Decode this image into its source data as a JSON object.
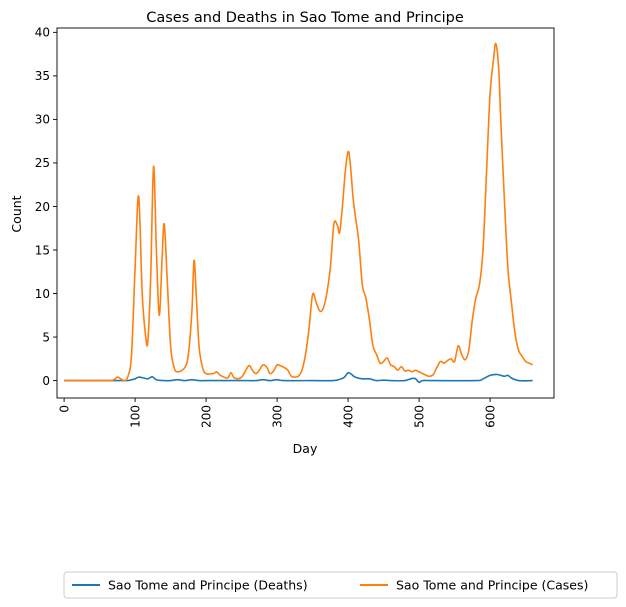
{
  "chart_data": {
    "type": "line",
    "title": "Cases and Deaths in Sao Tome and Principe",
    "xlabel": "Day",
    "ylabel": "Count",
    "xlim": [
      -10,
      690
    ],
    "ylim": [
      -2,
      40.5
    ],
    "xticks": [
      0,
      100,
      200,
      300,
      400,
      500,
      600
    ],
    "yticks": [
      0,
      5,
      10,
      15,
      20,
      25,
      30,
      35,
      40
    ],
    "x_tick_rotation": "vertical",
    "grid": false,
    "legend": "bottom, outside plot, 2 columns",
    "series": [
      {
        "name": "Sao Tome and Principe (Deaths)",
        "color": "#1f77b4",
        "points": [
          [
            0,
            0
          ],
          [
            80,
            0
          ],
          [
            90,
            0
          ],
          [
            95,
            0.1
          ],
          [
            100,
            0.2
          ],
          [
            105,
            0.4
          ],
          [
            112,
            0.3
          ],
          [
            118,
            0.2
          ],
          [
            124,
            0.45
          ],
          [
            130,
            0.1
          ],
          [
            140,
            0
          ],
          [
            150,
            0
          ],
          [
            160,
            0.1
          ],
          [
            170,
            0
          ],
          [
            180,
            0.1
          ],
          [
            190,
            0
          ],
          [
            200,
            0
          ],
          [
            250,
            0
          ],
          [
            270,
            0
          ],
          [
            280,
            0.1
          ],
          [
            290,
            0
          ],
          [
            300,
            0.1
          ],
          [
            310,
            0
          ],
          [
            350,
            0
          ],
          [
            380,
            0
          ],
          [
            390,
            0.2
          ],
          [
            395,
            0.4
          ],
          [
            400,
            0.9
          ],
          [
            405,
            0.7
          ],
          [
            410,
            0.4
          ],
          [
            420,
            0.2
          ],
          [
            430,
            0.2
          ],
          [
            440,
            0
          ],
          [
            450,
            0.05
          ],
          [
            460,
            0
          ],
          [
            480,
            0
          ],
          [
            490,
            0.25
          ],
          [
            495,
            0.2
          ],
          [
            500,
            -0.2
          ],
          [
            505,
            0
          ],
          [
            520,
            0
          ],
          [
            580,
            0
          ],
          [
            590,
            0.2
          ],
          [
            600,
            0.6
          ],
          [
            610,
            0.7
          ],
          [
            620,
            0.5
          ],
          [
            625,
            0.6
          ],
          [
            630,
            0.3
          ],
          [
            640,
            0
          ],
          [
            660,
            0
          ]
        ]
      },
      {
        "name": "Sao Tome and Principe (Cases)",
        "color": "#ff7f0e",
        "points": [
          [
            0,
            0
          ],
          [
            60,
            0
          ],
          [
            70,
            0.1
          ],
          [
            75,
            0.4
          ],
          [
            80,
            0.2
          ],
          [
            85,
            0
          ],
          [
            90,
            0.5
          ],
          [
            95,
            3
          ],
          [
            100,
            13
          ],
          [
            105,
            21.2
          ],
          [
            110,
            10
          ],
          [
            115,
            5
          ],
          [
            118,
            4.6
          ],
          [
            122,
            12
          ],
          [
            126,
            24.6
          ],
          [
            130,
            15
          ],
          [
            134,
            7.5
          ],
          [
            138,
            14
          ],
          [
            141,
            18
          ],
          [
            145,
            12
          ],
          [
            150,
            4
          ],
          [
            155,
            1.5
          ],
          [
            160,
            1
          ],
          [
            170,
            1.5
          ],
          [
            175,
            3
          ],
          [
            180,
            8
          ],
          [
            183,
            13.8
          ],
          [
            186,
            10
          ],
          [
            190,
            4
          ],
          [
            195,
            1.5
          ],
          [
            200,
            0.8
          ],
          [
            210,
            0.8
          ],
          [
            215,
            1
          ],
          [
            220,
            0.6
          ],
          [
            230,
            0.3
          ],
          [
            235,
            0.9
          ],
          [
            240,
            0.3
          ],
          [
            250,
            0.4
          ],
          [
            260,
            1.7
          ],
          [
            265,
            1.2
          ],
          [
            270,
            0.8
          ],
          [
            275,
            1.2
          ],
          [
            280,
            1.8
          ],
          [
            285,
            1.6
          ],
          [
            290,
            0.8
          ],
          [
            295,
            1.1
          ],
          [
            300,
            1.8
          ],
          [
            305,
            1.7
          ],
          [
            310,
            1.5
          ],
          [
            315,
            1.2
          ],
          [
            320,
            0.5
          ],
          [
            325,
            0.4
          ],
          [
            330,
            0.5
          ],
          [
            335,
            1.2
          ],
          [
            340,
            3
          ],
          [
            345,
            6
          ],
          [
            350,
            9.9
          ],
          [
            355,
            9
          ],
          [
            360,
            8
          ],
          [
            365,
            8.3
          ],
          [
            370,
            10
          ],
          [
            375,
            13
          ],
          [
            380,
            18
          ],
          [
            385,
            17.8
          ],
          [
            388,
            17
          ],
          [
            392,
            20
          ],
          [
            396,
            24
          ],
          [
            400,
            26.3
          ],
          [
            403,
            25
          ],
          [
            407,
            21
          ],
          [
            410,
            19
          ],
          [
            415,
            16
          ],
          [
            420,
            11
          ],
          [
            425,
            9.5
          ],
          [
            430,
            7
          ],
          [
            435,
            4
          ],
          [
            440,
            3
          ],
          [
            445,
            2
          ],
          [
            450,
            2.2
          ],
          [
            455,
            2.6
          ],
          [
            460,
            1.8
          ],
          [
            465,
            1.6
          ],
          [
            470,
            1.2
          ],
          [
            475,
            1.6
          ],
          [
            480,
            1.1
          ],
          [
            485,
            1.2
          ],
          [
            490,
            1
          ],
          [
            495,
            1.2
          ],
          [
            500,
            1
          ],
          [
            505,
            0.8
          ],
          [
            510,
            0.6
          ],
          [
            515,
            0.5
          ],
          [
            520,
            0.7
          ],
          [
            525,
            1.5
          ],
          [
            530,
            2.2
          ],
          [
            535,
            2
          ],
          [
            540,
            2.3
          ],
          [
            545,
            2.5
          ],
          [
            550,
            2.2
          ],
          [
            555,
            4
          ],
          [
            560,
            3
          ],
          [
            565,
            2.4
          ],
          [
            570,
            3.5
          ],
          [
            575,
            7
          ],
          [
            580,
            9.5
          ],
          [
            585,
            11
          ],
          [
            590,
            15
          ],
          [
            595,
            24
          ],
          [
            600,
            33
          ],
          [
            605,
            37
          ],
          [
            608,
            38.7
          ],
          [
            612,
            36
          ],
          [
            615,
            30
          ],
          [
            620,
            21
          ],
          [
            625,
            13
          ],
          [
            630,
            9
          ],
          [
            635,
            5.5
          ],
          [
            640,
            3.5
          ],
          [
            645,
            2.8
          ],
          [
            650,
            2.2
          ],
          [
            655,
            2
          ],
          [
            660,
            1.8
          ]
        ]
      }
    ]
  }
}
